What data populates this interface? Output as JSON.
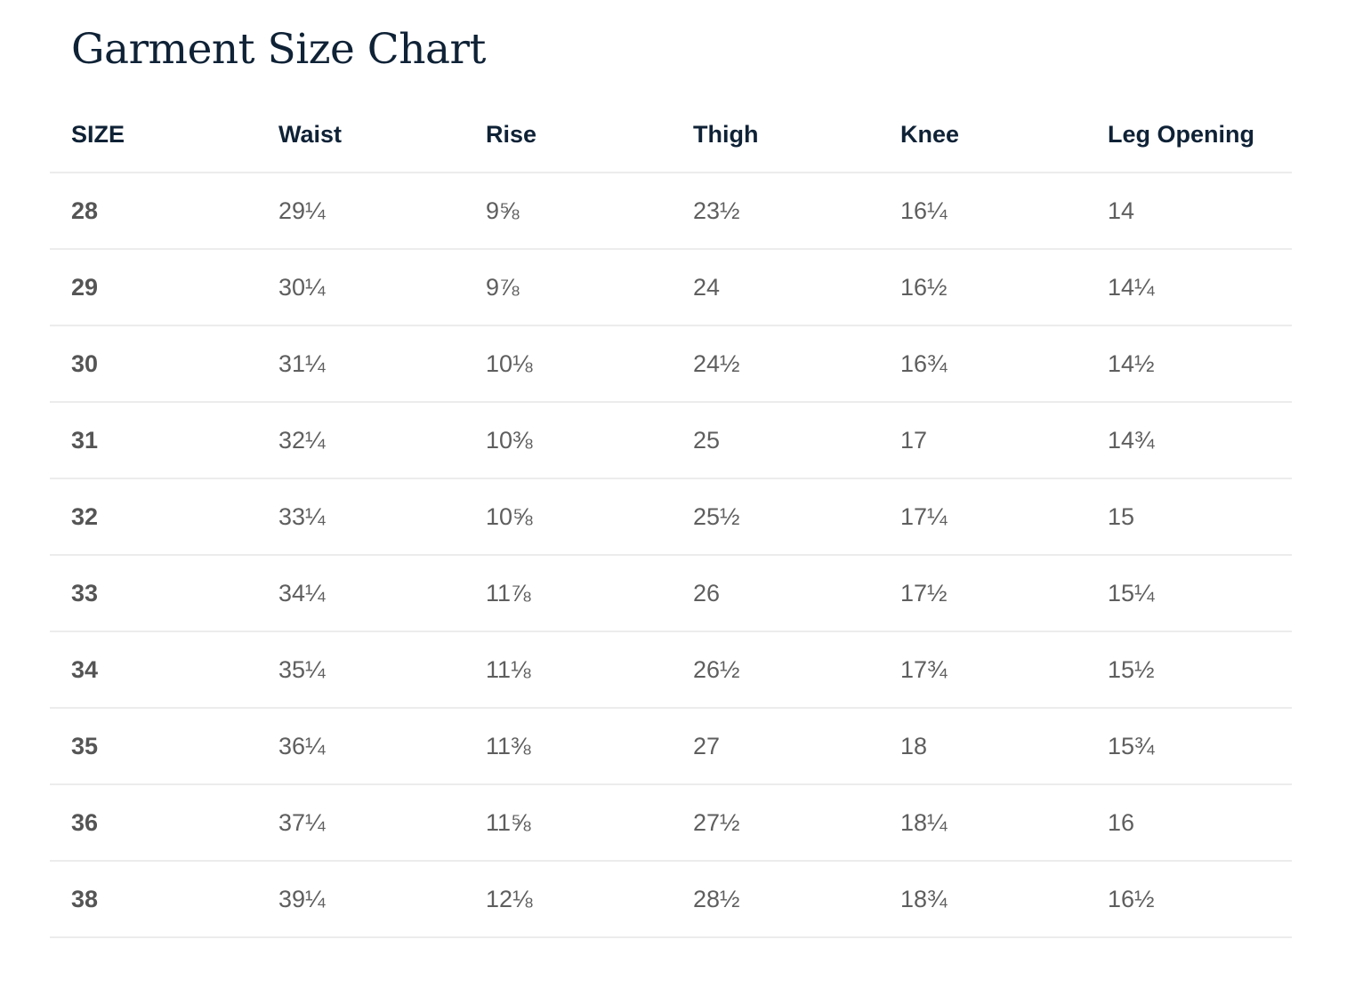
{
  "page": {
    "title": "Garment Size Chart"
  },
  "table": {
    "headers": [
      "SIZE",
      "Waist",
      "Rise",
      "Thigh",
      "Knee",
      "Leg Opening"
    ],
    "rows": [
      [
        "28",
        "29¼",
        "9⅝",
        "23½",
        "16¼",
        "14"
      ],
      [
        "29",
        "30¼",
        "9⅞",
        "24",
        "16½",
        "14¼"
      ],
      [
        "30",
        "31¼",
        "10⅛",
        "24½",
        "16¾",
        "14½"
      ],
      [
        "31",
        "32¼",
        "10⅜",
        "25",
        "17",
        "14¾"
      ],
      [
        "32",
        "33¼",
        "10⅝",
        "25½",
        "17¼",
        "15"
      ],
      [
        "33",
        "34¼",
        "11⅞",
        "26",
        "17½",
        "15¼"
      ],
      [
        "34",
        "35¼",
        "11⅛",
        "26½",
        "17¾",
        "15½"
      ],
      [
        "35",
        "36¼",
        "11⅜",
        "27",
        "18",
        "15¾"
      ],
      [
        "36",
        "37¼",
        "11⅝",
        "27½",
        "18¼",
        "16"
      ],
      [
        "38",
        "39¼",
        "12⅛",
        "28½",
        "18¾",
        "16½"
      ]
    ]
  },
  "colors": {
    "heading": "#0f2236",
    "size_text": "#555555",
    "value_text": "#5e5e5e",
    "divider": "#ececec"
  }
}
